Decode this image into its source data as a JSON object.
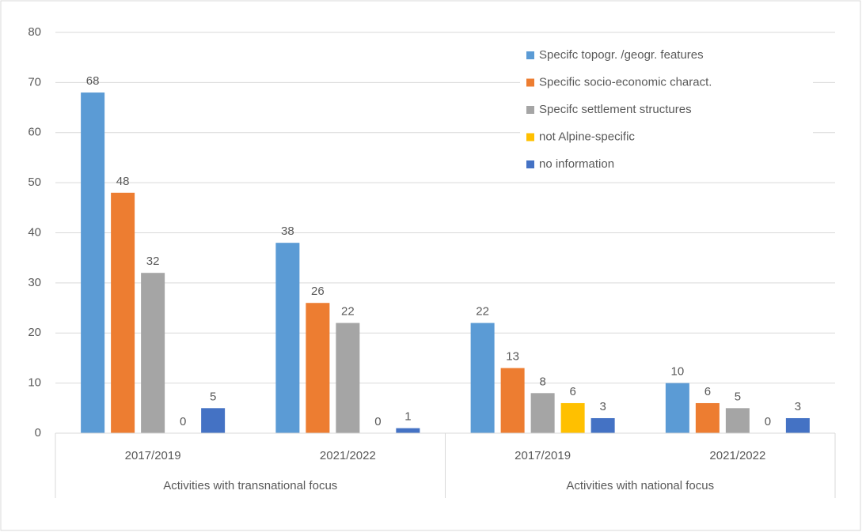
{
  "chart_data": {
    "type": "bar",
    "groups": [
      {
        "name": "Activities with transnational focus",
        "categories": [
          "2017/2019",
          "2021/2022"
        ]
      },
      {
        "name": "Activities with national focus",
        "categories": [
          "2017/2019",
          "2021/2022"
        ]
      }
    ],
    "series": [
      {
        "name": "Specifc topogr. /geogr. features",
        "color": "#5b9bd5",
        "values": [
          68,
          38,
          22,
          10
        ]
      },
      {
        "name": "Specific socio-economic charact.",
        "color": "#ed7d31",
        "values": [
          48,
          26,
          13,
          6
        ]
      },
      {
        "name": "Specifc settlement structures",
        "color": "#a5a5a5",
        "values": [
          32,
          22,
          8,
          5
        ]
      },
      {
        "name": "not Alpine-specific",
        "color": "#ffc000",
        "values": [
          0,
          0,
          6,
          0
        ]
      },
      {
        "name": "no information",
        "color": "#4472c4",
        "values": [
          5,
          1,
          3,
          3
        ]
      }
    ],
    "ylim": [
      0,
      80
    ],
    "yticks": [
      0,
      10,
      20,
      30,
      40,
      50,
      60,
      70,
      80
    ],
    "grid": true,
    "legend": "top-right"
  }
}
